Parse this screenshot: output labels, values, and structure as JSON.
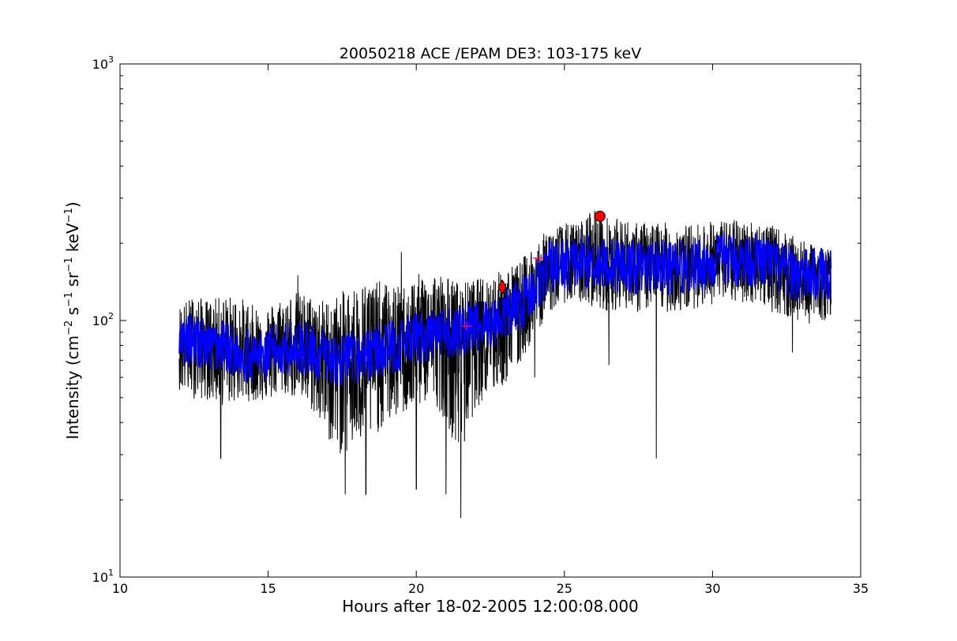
{
  "chart_data": {
    "type": "line",
    "title": "20050218 ACE /EPAM DE3: 103-175 keV",
    "xlabel": "Hours after 18-02-2005 12:00:08.000",
    "ylabel_parts": [
      "Intensity (cm",
      "−2",
      " s",
      "−1",
      " sr",
      "−1",
      " keV",
      "−1",
      ")"
    ],
    "xlim": [
      10,
      35
    ],
    "ylim": [
      10,
      1000
    ],
    "yscale": "log",
    "grid": false,
    "x_ticks": [
      10,
      15,
      20,
      25,
      30,
      35
    ],
    "x_tick_labels": [
      "10",
      "15",
      "20",
      "25",
      "30",
      "35"
    ],
    "y_ticks": [
      10,
      100,
      1000
    ],
    "y_tick_labels": [
      {
        "base": "10",
        "exp": "1"
      },
      {
        "base": "10",
        "exp": "2"
      },
      {
        "base": "10",
        "exp": "3"
      }
    ],
    "series": [
      {
        "color": "#000000",
        "style": "raw",
        "x": [
          12.0,
          12.5,
          13.0,
          13.5,
          14.0,
          14.5,
          15.0,
          15.5,
          16.0,
          16.5,
          17.0,
          17.5,
          18.0,
          18.5,
          19.0,
          19.5,
          20.0,
          20.5,
          21.0,
          21.5,
          22.0,
          22.5,
          23.0,
          23.5,
          24.0,
          24.5,
          25.0,
          25.5,
          26.0,
          26.5,
          27.0,
          27.5,
          28.0,
          28.5,
          29.0,
          29.5,
          30.0,
          30.5,
          31.0,
          31.5,
          32.0,
          32.5,
          33.0,
          33.5,
          34.0
        ],
        "y": [
          80,
          85,
          78,
          80,
          75,
          72,
          74,
          78,
          80,
          75,
          72,
          70,
          72,
          75,
          78,
          80,
          85,
          88,
          86,
          92,
          95,
          98,
          105,
          115,
          135,
          160,
          165,
          168,
          170,
          165,
          165,
          160,
          165,
          160,
          162,
          165,
          168,
          175,
          170,
          172,
          165,
          155,
          150,
          150,
          155
        ],
        "min_envelope": [
          50,
          45,
          45,
          42,
          45,
          45,
          45,
          48,
          45,
          40,
          30,
          25,
          28,
          30,
          35,
          38,
          40,
          45,
          35,
          22,
          40,
          45,
          50,
          60,
          80,
          100,
          110,
          110,
          105,
          100,
          105,
          100,
          105,
          100,
          100,
          105,
          108,
          110,
          108,
          110,
          100,
          95,
          90,
          90,
          95
        ],
        "max_envelope": [
          115,
          125,
          120,
          125,
          125,
          115,
          115,
          125,
          130,
          125,
          120,
          130,
          140,
          145,
          140,
          135,
          150,
          160,
          150,
          140,
          145,
          150,
          160,
          170,
          200,
          230,
          240,
          240,
          280,
          250,
          250,
          240,
          245,
          240,
          235,
          240,
          245,
          250,
          245,
          245,
          235,
          220,
          205,
          195,
          190
        ],
        "spikes": [
          [
            13.4,
            29
          ],
          [
            17.6,
            21
          ],
          [
            18.3,
            21
          ],
          [
            20.0,
            22
          ],
          [
            21.0,
            21
          ],
          [
            21.5,
            17
          ],
          [
            28.1,
            29
          ],
          [
            26.5,
            67
          ],
          [
            24.0,
            60
          ],
          [
            32.7,
            75
          ],
          [
            16.0,
            150
          ],
          [
            19.5,
            185
          ],
          [
            21.8,
            135
          ]
        ]
      },
      {
        "color": "#0000ff",
        "style": "smoothed",
        "x": [
          12.0,
          12.5,
          13.0,
          13.5,
          14.0,
          14.5,
          15.0,
          15.5,
          16.0,
          16.5,
          17.0,
          17.5,
          18.0,
          18.5,
          19.0,
          19.5,
          20.0,
          20.5,
          21.0,
          21.5,
          22.0,
          22.5,
          23.0,
          23.5,
          24.0,
          24.5,
          25.0,
          25.5,
          26.0,
          26.5,
          27.0,
          27.5,
          28.0,
          28.5,
          29.0,
          29.5,
          30.0,
          30.5,
          31.0,
          31.5,
          32.0,
          32.5,
          33.0,
          33.5,
          34.0
        ],
        "y": [
          80,
          85,
          78,
          80,
          75,
          72,
          74,
          78,
          80,
          75,
          72,
          70,
          72,
          75,
          78,
          80,
          85,
          88,
          86,
          92,
          95,
          98,
          105,
          115,
          135,
          160,
          165,
          168,
          170,
          165,
          165,
          160,
          165,
          160,
          162,
          165,
          168,
          175,
          170,
          172,
          165,
          155,
          150,
          150,
          155
        ]
      }
    ],
    "markers": [
      {
        "shape": "circle",
        "color": "#ff0000",
        "x": 26.2,
        "y": 255
      },
      {
        "shape": "diamond",
        "color": "#ff0000",
        "x": 22.9,
        "y": 135
      },
      {
        "shape": "plus",
        "color": "#ff0066",
        "x": 24.1,
        "y": 175
      },
      {
        "shape": "plus",
        "color": "#ff0066",
        "x": 21.7,
        "y": 95
      }
    ]
  }
}
